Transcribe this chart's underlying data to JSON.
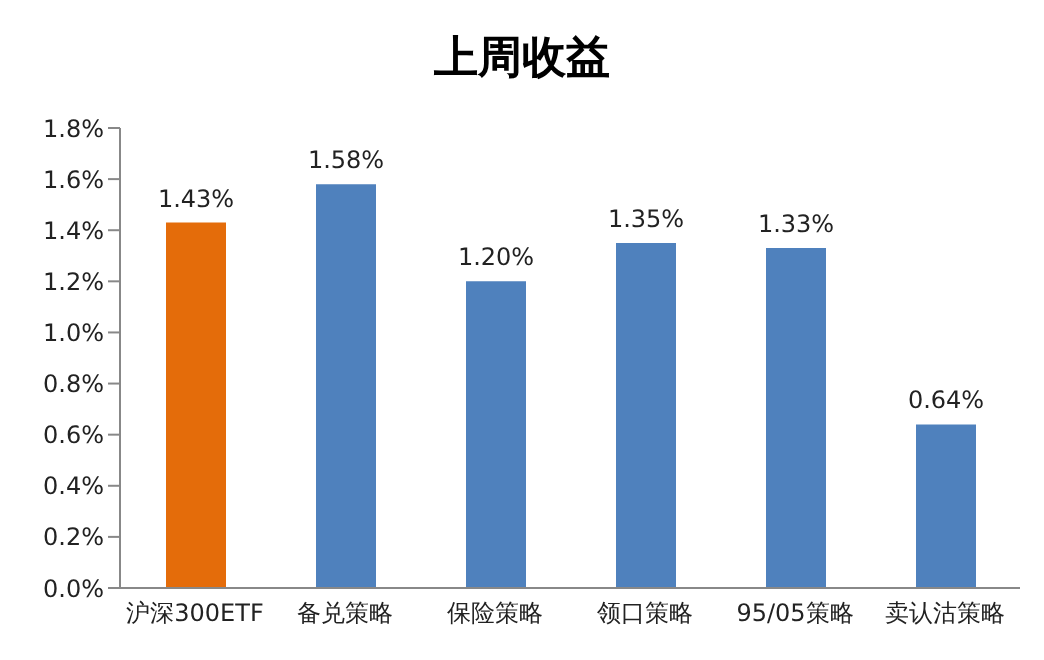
{
  "chart_data": {
    "type": "bar",
    "title": "上周收益",
    "categories": [
      "沪深300ETF",
      "备兑策略",
      "保险策略",
      "领口策略",
      "95/05策略",
      "卖认沽策略"
    ],
    "values": [
      1.43,
      1.58,
      1.2,
      1.35,
      1.33,
      0.64
    ],
    "colors": [
      "#e46c0a",
      "#4f81bd",
      "#4f81bd",
      "#4f81bd",
      "#4f81bd",
      "#4f81bd"
    ],
    "value_labels": [
      "1.43%",
      "1.58%",
      "1.20%",
      "1.35%",
      "1.33%",
      "0.64%"
    ],
    "ylim": [
      0,
      1.8
    ],
    "yticks": [
      {
        "value": 0,
        "label": "0.0%"
      },
      {
        "value": 0.2,
        "label": "0.2%"
      },
      {
        "value": 0.4,
        "label": "0.4%"
      },
      {
        "value": 0.6,
        "label": "0.6%"
      },
      {
        "value": 0.8,
        "label": "0.8%"
      },
      {
        "value": 1.0,
        "label": "1.0%"
      },
      {
        "value": 1.2,
        "label": "1.2%"
      },
      {
        "value": 1.4,
        "label": "1.4%"
      },
      {
        "value": 1.6,
        "label": "1.6%"
      },
      {
        "value": 1.8,
        "label": "1.8%"
      }
    ],
    "grid": false,
    "legend": false
  }
}
